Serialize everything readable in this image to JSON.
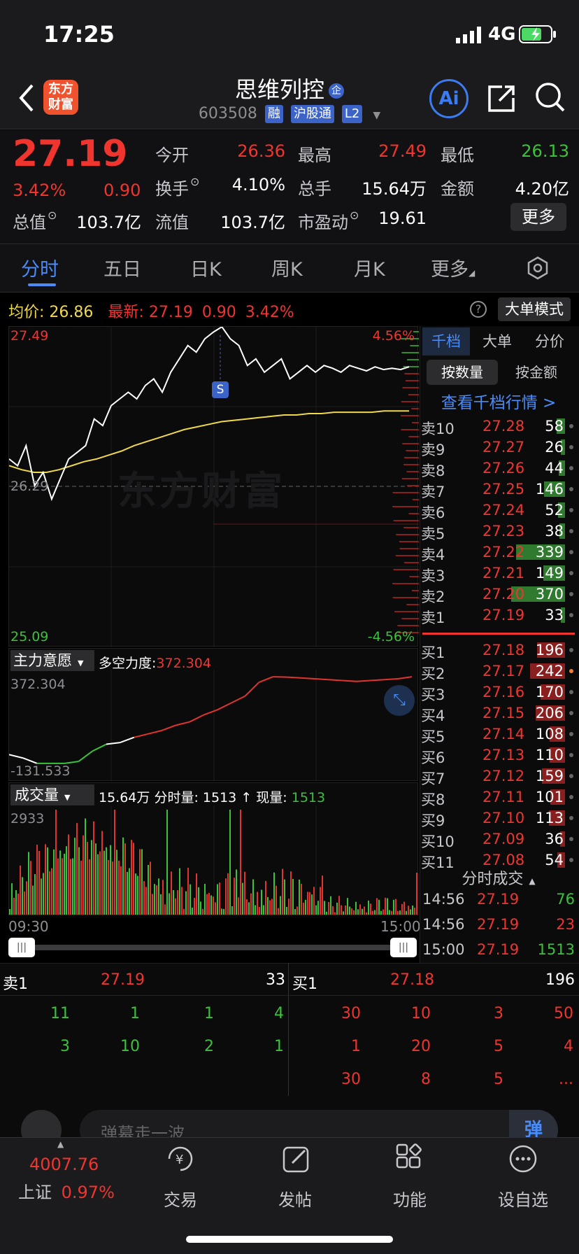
{
  "status": {
    "time": "17:25",
    "network": "4G"
  },
  "header": {
    "name": "思维列控",
    "code": "603508",
    "tags": [
      "融",
      "沪股通",
      "L2"
    ],
    "logo_text": "东方财富",
    "ai_label": "Ai"
  },
  "quote": {
    "price": "27.19",
    "pct": "3.42%",
    "chg": "0.90",
    "open_label": "今开",
    "open": "26.36",
    "high_label": "最高",
    "high": "27.49",
    "low_label": "最低",
    "low": "26.13",
    "turnover_label": "换手",
    "turnover": "4.10%",
    "volume_label": "总手",
    "volume": "15.64万",
    "amount_label": "金额",
    "amount": "4.20亿",
    "mktcap_label": "总值",
    "mktcap": "103.7亿",
    "float_label": "流值",
    "float": "103.7亿",
    "pe_label": "市盈动",
    "pe": "19.61",
    "more_button": "更多"
  },
  "tabs": [
    "分时",
    "五日",
    "日K",
    "周K",
    "月K",
    "更多"
  ],
  "chart_info": {
    "avg_label": "均价:",
    "avg": "26.86",
    "latest_label": "最新:",
    "latest": "27.19",
    "chg": "0.90",
    "pct": "3.42%",
    "mode_button": "大单模式"
  },
  "chart_data": {
    "type": "line",
    "price_axis": {
      "top": "27.49",
      "mid": "26.29",
      "bottom": "25.09",
      "top_pct": "4.56%",
      "bottom_pct": "-4.56%"
    },
    "x_labels": [
      "09:30",
      "15:00"
    ],
    "watermark": "东方财富",
    "marker": "S",
    "price_series": [
      26.5,
      26.45,
      26.6,
      26.3,
      26.4,
      26.2,
      26.35,
      26.5,
      26.55,
      26.6,
      26.8,
      26.75,
      26.9,
      26.95,
      27.0,
      26.95,
      27.05,
      27.1,
      27.0,
      27.15,
      27.25,
      27.35,
      27.3,
      27.4,
      27.45,
      27.49,
      27.4,
      27.35,
      27.2,
      27.25,
      27.15,
      27.2,
      27.25,
      27.1,
      27.15,
      27.2,
      27.15,
      27.2,
      27.18,
      27.15,
      27.2,
      27.18,
      27.16,
      27.19,
      27.17,
      27.18,
      27.17,
      27.19
    ],
    "avg_series": [
      26.45,
      26.42,
      26.4,
      26.4,
      26.42,
      26.45,
      26.48,
      26.5,
      26.53,
      26.56,
      26.6,
      26.63,
      26.66,
      26.69,
      26.72,
      26.74,
      26.76,
      26.78,
      26.79,
      26.8,
      26.81,
      26.82,
      26.83,
      26.83,
      26.84,
      26.84,
      26.85,
      26.85,
      26.85,
      26.85,
      26.86,
      26.86,
      26.86
    ],
    "force": {
      "label": "主力意愿",
      "index_label": "多空力度:",
      "index": "372.304",
      "top": "372.304",
      "bottom": "-131.533",
      "series": [
        -80,
        -100,
        -131,
        -131,
        -131,
        -120,
        -60,
        -20,
        -10,
        20,
        40,
        60,
        90,
        110,
        150,
        180,
        220,
        260,
        340,
        372,
        370,
        365,
        360,
        355,
        350,
        345,
        350,
        355,
        360,
        372
      ]
    },
    "volume": {
      "label": "成交量",
      "total": "15.64万",
      "minute_label": "分时量:",
      "minute": "1513",
      "arrow": "↑",
      "now_label": "现量:",
      "now": "1513",
      "max": "2933"
    }
  },
  "orderbook": {
    "tabs": [
      "千档",
      "大单",
      "分价"
    ],
    "subtabs": [
      "按数量",
      "按金额"
    ],
    "link": "查看千档行情 >",
    "asks": [
      {
        "label": "卖10",
        "price": "27.28",
        "qty": "58",
        "frac": 0.15
      },
      {
        "label": "卖9",
        "price": "27.27",
        "qty": "26",
        "frac": 0.07
      },
      {
        "label": "卖8",
        "price": "27.26",
        "qty": "44",
        "frac": 0.11
      },
      {
        "label": "卖7",
        "price": "27.25",
        "qty": "146",
        "frac": 0.38
      },
      {
        "label": "卖6",
        "price": "27.24",
        "qty": "52",
        "frac": 0.13
      },
      {
        "label": "卖5",
        "price": "27.23",
        "qty": "38",
        "frac": 0.1
      },
      {
        "label": "卖4",
        "price": "27.22",
        "qty": "339",
        "frac": 0.88
      },
      {
        "label": "卖3",
        "price": "27.21",
        "qty": "149",
        "frac": 0.39
      },
      {
        "label": "卖2",
        "price": "27.20",
        "qty": "370",
        "frac": 0.96
      },
      {
        "label": "卖1",
        "price": "27.19",
        "qty": "33",
        "frac": 0.08
      }
    ],
    "bids": [
      {
        "label": "买1",
        "price": "27.18",
        "qty": "196",
        "frac": 0.5
      },
      {
        "label": "买2",
        "price": "27.17",
        "qty": "242",
        "frac": 0.63
      },
      {
        "label": "买3",
        "price": "27.16",
        "qty": "170",
        "frac": 0.44
      },
      {
        "label": "买4",
        "price": "27.15",
        "qty": "206",
        "frac": 0.53
      },
      {
        "label": "买5",
        "price": "27.14",
        "qty": "108",
        "frac": 0.28
      },
      {
        "label": "买6",
        "price": "27.13",
        "qty": "110",
        "frac": 0.28
      },
      {
        "label": "买7",
        "price": "27.12",
        "qty": "159",
        "frac": 0.41
      },
      {
        "label": "买8",
        "price": "27.11",
        "qty": "101",
        "frac": 0.26
      },
      {
        "label": "买9",
        "price": "27.10",
        "qty": "113",
        "frac": 0.29
      },
      {
        "label": "买10",
        "price": "27.09",
        "qty": "36",
        "frac": 0.09
      },
      {
        "label": "买11",
        "price": "27.08",
        "qty": "54",
        "frac": 0.14
      }
    ],
    "trades_title": "分时成交",
    "trades": [
      {
        "time": "14:56",
        "price": "27.19",
        "qty": "76"
      },
      {
        "time": "14:56",
        "price": "27.19",
        "qty": "23"
      },
      {
        "time": "15:00",
        "price": "27.19",
        "qty": "1513"
      }
    ]
  },
  "queue": {
    "ask_label": "卖1",
    "ask_price": "27.19",
    "ask_qty": "33",
    "bid_label": "买1",
    "bid_price": "27.18",
    "bid_qty": "196",
    "ask_rows": [
      [
        "11",
        "1",
        "1",
        "4"
      ],
      [
        "3",
        "10",
        "2",
        "1"
      ]
    ],
    "bid_rows": [
      [
        "30",
        "10",
        "3",
        "50"
      ],
      [
        "1",
        "20",
        "5",
        "4"
      ],
      [
        "30",
        "8",
        "5",
        "..."
      ]
    ]
  },
  "comment": {
    "placeholder": "弹幕走一波...",
    "danmu_button": "弹"
  },
  "tabbar": {
    "index_value": "4007.76",
    "index_name": "上证",
    "index_pct": "0.97%",
    "items": [
      "交易",
      "发帖",
      "功能",
      "设自选"
    ]
  }
}
